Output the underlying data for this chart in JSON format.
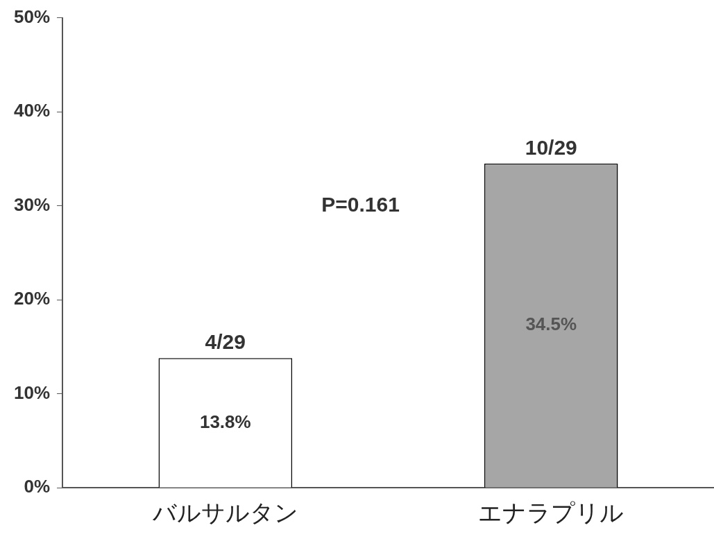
{
  "chart_data": {
    "type": "bar",
    "categories": [
      "バルサルタン",
      "エナラプリル"
    ],
    "values": [
      13.8,
      34.5
    ],
    "colors": [
      "#ffffff",
      "#a6a6a6"
    ],
    "value_labels": [
      "13.8%",
      "34.5%"
    ],
    "ylim": [
      0,
      50
    ],
    "yticks": [
      {
        "value": 0,
        "label": "0%"
      },
      {
        "value": 10,
        "label": "10%"
      },
      {
        "value": 20,
        "label": "20%"
      },
      {
        "value": 30,
        "label": "30%"
      },
      {
        "value": 40,
        "label": "40%"
      },
      {
        "value": 50,
        "label": "50%"
      }
    ],
    "grid": false,
    "legend": false,
    "annotations": [
      {
        "text": "4/29",
        "x": "バルサルタン",
        "y": 13.8
      },
      {
        "text": "10/29",
        "x": "エナラプリル",
        "y": 34.5
      },
      "P=0.161"
    ]
  }
}
